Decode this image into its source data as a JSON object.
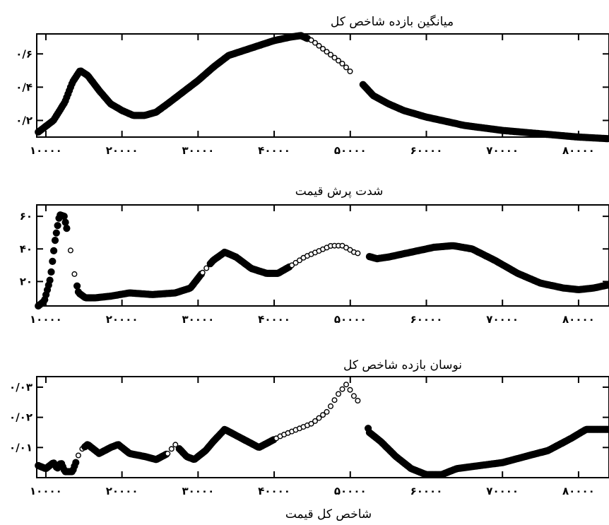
{
  "figure": {
    "xlabel": "شاخص کل قیمت"
  },
  "chart_data": [
    {
      "type": "scatter",
      "title": "میانگین بازده شاخص کل",
      "xlim": [
        8800,
        84000
      ],
      "ylim": [
        0.1,
        0.72
      ],
      "xticks": [
        10000,
        20000,
        30000,
        40000,
        50000,
        60000,
        70000,
        80000
      ],
      "xtick_labels": [
        "۱۰۰۰۰",
        "۲۰۰۰۰",
        "۳۰۰۰۰",
        "۴۰۰۰۰",
        "۵۰۰۰۰",
        "۶۰۰۰۰",
        "۷۰۰۰۰",
        "۸۰۰۰۰"
      ],
      "yticks": [
        0.2,
        0.4,
        0.6
      ],
      "ytick_labels": [
        "۰/۲",
        "۰/۴",
        "۰/۶"
      ],
      "curve": [
        [
          9000,
          0.13
        ],
        [
          11000,
          0.2
        ],
        [
          12500,
          0.31
        ],
        [
          13500,
          0.43
        ],
        [
          14500,
          0.5
        ],
        [
          15500,
          0.47
        ],
        [
          17000,
          0.38
        ],
        [
          18500,
          0.3
        ],
        [
          20000,
          0.26
        ],
        [
          21500,
          0.23
        ],
        [
          23000,
          0.23
        ],
        [
          24500,
          0.25
        ],
        [
          26000,
          0.3
        ],
        [
          28000,
          0.37
        ],
        [
          30000,
          0.44
        ],
        [
          32000,
          0.52
        ],
        [
          34000,
          0.59
        ],
        [
          36000,
          0.62
        ],
        [
          38000,
          0.65
        ],
        [
          40000,
          0.68
        ],
        [
          42000,
          0.7
        ],
        [
          43500,
          0.71
        ],
        [
          45000,
          0.68
        ],
        [
          47000,
          0.61
        ],
        [
          49000,
          0.54
        ],
        [
          50500,
          0.47
        ],
        [
          52000,
          0.4
        ],
        [
          53000,
          0.35
        ],
        [
          55000,
          0.3
        ],
        [
          57000,
          0.26
        ],
        [
          60000,
          0.22
        ],
        [
          65000,
          0.17
        ],
        [
          70000,
          0.14
        ],
        [
          75000,
          0.12
        ],
        [
          80000,
          0.1
        ],
        [
          84000,
          0.09
        ]
      ],
      "open_segments": [
        [
          44500,
          50000
        ]
      ],
      "gaps": [
        [
          50000,
          51500
        ]
      ]
    },
    {
      "type": "scatter",
      "title": "شدت پرش قیمت",
      "xlim": [
        8800,
        84000
      ],
      "ylim": [
        5,
        67
      ],
      "xticks": [
        10000,
        20000,
        30000,
        40000,
        50000,
        60000,
        70000,
        80000
      ],
      "xtick_labels": [
        "۱۰۰۰۰",
        "۲۰۰۰۰",
        "۳۰۰۰۰",
        "۴۰۰۰۰",
        "۵۰۰۰۰",
        "۶۰۰۰۰",
        "۷۰۰۰۰",
        "۸۰۰۰۰"
      ],
      "yticks": [
        20,
        40,
        60
      ],
      "ytick_labels": [
        "۲۰",
        "۴۰",
        "۶۰"
      ],
      "curve": [
        [
          9000,
          5
        ],
        [
          9800,
          8
        ],
        [
          10600,
          22
        ],
        [
          11200,
          45
        ],
        [
          11800,
          61
        ],
        [
          12400,
          60
        ],
        [
          13000,
          47
        ],
        [
          13600,
          28
        ],
        [
          14300,
          13
        ],
        [
          15200,
          10
        ],
        [
          16500,
          10
        ],
        [
          18500,
          11
        ],
        [
          21000,
          13
        ],
        [
          24000,
          12
        ],
        [
          27000,
          13
        ],
        [
          29000,
          16
        ],
        [
          30500,
          25
        ],
        [
          32000,
          33
        ],
        [
          33500,
          38
        ],
        [
          35000,
          35
        ],
        [
          37000,
          28
        ],
        [
          39000,
          25
        ],
        [
          40500,
          25
        ],
        [
          42000,
          29
        ],
        [
          44000,
          35
        ],
        [
          46000,
          39
        ],
        [
          47500,
          42
        ],
        [
          49000,
          42
        ],
        [
          50500,
          38
        ],
        [
          52000,
          36
        ],
        [
          53500,
          34
        ],
        [
          55000,
          35
        ],
        [
          58000,
          38
        ],
        [
          61000,
          41
        ],
        [
          63500,
          42
        ],
        [
          66000,
          40
        ],
        [
          69000,
          33
        ],
        [
          72000,
          25
        ],
        [
          75000,
          19
        ],
        [
          78000,
          16
        ],
        [
          80000,
          15
        ],
        [
          82000,
          16
        ],
        [
          84000,
          18
        ]
      ],
      "open_segments": [
        [
          42000,
          51500
        ],
        [
          12800,
          14000
        ],
        [
          30500,
          31500
        ]
      ],
      "gaps": [
        [
          51500,
          52500
        ]
      ]
    },
    {
      "type": "scatter",
      "title": "نوسان بازده شاخص کل",
      "xlim": [
        8800,
        84000
      ],
      "ylim": [
        0.0,
        0.0335
      ],
      "xticks": [
        10000,
        20000,
        30000,
        40000,
        50000,
        60000,
        70000,
        80000
      ],
      "xtick_labels": [
        "۱۰۰۰۰",
        "۲۰۰۰۰",
        "۳۰۰۰۰",
        "۴۰۰۰۰",
        "۵۰۰۰۰",
        "۶۰۰۰۰",
        "۷۰۰۰۰",
        "۸۰۰۰۰"
      ],
      "yticks": [
        0.01,
        0.02,
        0.03
      ],
      "ytick_labels": [
        "۰/۰۱",
        "۰/۰۲",
        "۰/۰۳"
      ],
      "curve": [
        [
          9000,
          0.004
        ],
        [
          10000,
          0.003
        ],
        [
          11000,
          0.005
        ],
        [
          11500,
          0.003
        ],
        [
          12000,
          0.005
        ],
        [
          12500,
          0.002
        ],
        [
          13500,
          0.002
        ],
        [
          14500,
          0.009
        ],
        [
          15500,
          0.011
        ],
        [
          17000,
          0.008
        ],
        [
          18500,
          0.01
        ],
        [
          19500,
          0.011
        ],
        [
          21000,
          0.008
        ],
        [
          23000,
          0.007
        ],
        [
          24500,
          0.006
        ],
        [
          26000,
          0.008
        ],
        [
          27000,
          0.011
        ],
        [
          28500,
          0.007
        ],
        [
          29500,
          0.006
        ],
        [
          31000,
          0.009
        ],
        [
          32000,
          0.012
        ],
        [
          33500,
          0.016
        ],
        [
          35000,
          0.014
        ],
        [
          36500,
          0.012
        ],
        [
          38000,
          0.01
        ],
        [
          39500,
          0.012
        ],
        [
          41000,
          0.014
        ],
        [
          43000,
          0.016
        ],
        [
          45000,
          0.018
        ],
        [
          47000,
          0.022
        ],
        [
          48500,
          0.028
        ],
        [
          49500,
          0.031
        ],
        [
          50500,
          0.027
        ],
        [
          51500,
          0.024
        ],
        [
          52500,
          0.015
        ],
        [
          54000,
          0.012
        ],
        [
          56000,
          0.007
        ],
        [
          58000,
          0.003
        ],
        [
          60000,
          0.001
        ],
        [
          62000,
          0.001
        ],
        [
          64000,
          0.003
        ],
        [
          67000,
          0.004
        ],
        [
          70000,
          0.005
        ],
        [
          73000,
          0.007
        ],
        [
          76000,
          0.009
        ],
        [
          79000,
          0.013
        ],
        [
          81000,
          0.016
        ],
        [
          83000,
          0.016
        ],
        [
          84000,
          0.016
        ]
      ],
      "open_segments": [
        [
          40000,
          51500
        ],
        [
          14000,
          15000
        ],
        [
          26000,
          27500
        ]
      ],
      "gaps": [
        [
          51500,
          52300
        ]
      ]
    }
  ]
}
